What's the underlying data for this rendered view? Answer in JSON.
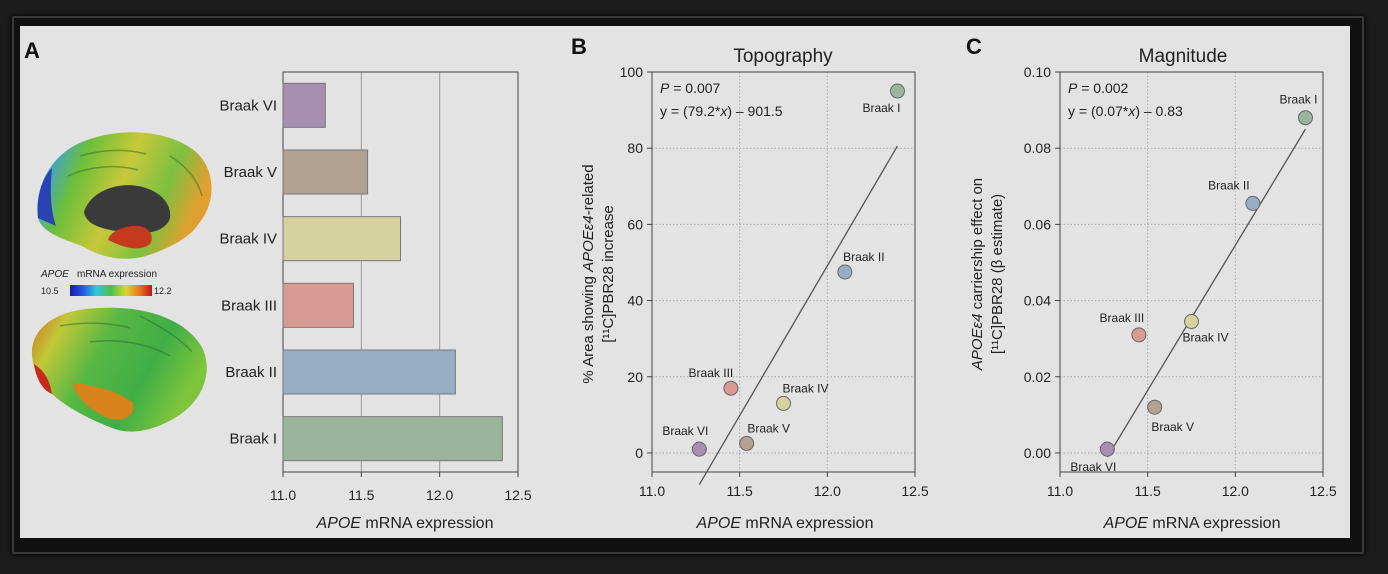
{
  "panels": {
    "a": {
      "label": "A",
      "colorbar": {
        "title_gene": "APOE",
        "title_rest": "mRNA expression",
        "min_label": "10.5",
        "max_label": "12.2"
      }
    },
    "b": {
      "label": "B"
    },
    "c": {
      "label": "C"
    }
  },
  "chart_data": [
    {
      "type": "bar",
      "orientation": "horizontal",
      "categories": [
        "Braak VI",
        "Braak V",
        "Braak IV",
        "Braak III",
        "Braak II",
        "Braak I"
      ],
      "values": [
        11.27,
        11.54,
        11.75,
        11.45,
        12.1,
        12.4
      ],
      "colors": [
        "#a68fb0",
        "#b3a292",
        "#d6d2a0",
        "#d99a93",
        "#97aec4",
        "#9bb59d"
      ],
      "xlim": [
        11.0,
        12.5
      ],
      "xticks": [
        "11.0",
        "11.5",
        "12.0",
        "12.5"
      ],
      "xlabel_gene": "APOE",
      "xlabel_rest": " mRNA expression",
      "grid": "vertical"
    },
    {
      "type": "scatter",
      "title": "Topography",
      "points": [
        {
          "label": "Braak I",
          "x": 12.4,
          "y": 95,
          "color": "#9bb59d"
        },
        {
          "label": "Braak II",
          "x": 12.1,
          "y": 47.5,
          "color": "#97aec4"
        },
        {
          "label": "Braak III",
          "x": 11.45,
          "y": 17,
          "color": "#d99a93"
        },
        {
          "label": "Braak IV",
          "x": 11.75,
          "y": 13,
          "color": "#d6d2a0"
        },
        {
          "label": "Braak V",
          "x": 11.54,
          "y": 2.5,
          "color": "#b3a292"
        },
        {
          "label": "Braak VI",
          "x": 11.27,
          "y": 1,
          "color": "#a68fb0"
        }
      ],
      "fit_line": {
        "x": [
          11.27,
          12.4
        ],
        "y": [
          -8.3,
          80.6
        ]
      },
      "xlim": [
        11.0,
        12.5
      ],
      "ylim": [
        -5,
        100
      ],
      "xticks": [
        "11.0",
        "11.5",
        "12.0",
        "12.5"
      ],
      "yticks": [
        "0",
        "20",
        "40",
        "60",
        "80",
        "100"
      ],
      "xlabel_gene": "APOE",
      "xlabel_rest": " mRNA expression",
      "ylabel_line1_pre": "% Area showing ",
      "ylabel_line1_gene": "APOEε4",
      "ylabel_line1_post": "-related",
      "ylabel_line2": "[¹¹C]PBR28 increase",
      "annotation_p_symbol": "P",
      "annotation_p_value": " = 0.007",
      "annotation_eq_pre": "y = (79.2*",
      "annotation_eq_var": "x",
      "annotation_eq_post": ") – 901.5",
      "grid": true
    },
    {
      "type": "scatter",
      "title": "Magnitude",
      "points": [
        {
          "label": "Braak I",
          "x": 12.4,
          "y": 0.088,
          "color": "#9bb59d"
        },
        {
          "label": "Braak II",
          "x": 12.1,
          "y": 0.0655,
          "color": "#97aec4"
        },
        {
          "label": "Braak III",
          "x": 11.45,
          "y": 0.031,
          "color": "#d99a93"
        },
        {
          "label": "Braak IV",
          "x": 11.75,
          "y": 0.0345,
          "color": "#d6d2a0"
        },
        {
          "label": "Braak V",
          "x": 11.54,
          "y": 0.012,
          "color": "#b3a292"
        },
        {
          "label": "Braak VI",
          "x": 11.27,
          "y": 0.001,
          "color": "#a68fb0"
        }
      ],
      "fit_line": {
        "x": [
          11.27,
          12.4
        ],
        "y": [
          -0.0011,
          0.085
        ]
      },
      "xlim": [
        11.0,
        12.5
      ],
      "ylim": [
        -0.005,
        0.1
      ],
      "xticks": [
        "11.0",
        "11.5",
        "12.0",
        "12.5"
      ],
      "yticks": [
        "0.00",
        "0.02",
        "0.04",
        "0.06",
        "0.08",
        "0.10"
      ],
      "xlabel_gene": "APOE",
      "xlabel_rest": " mRNA expression",
      "ylabel_line1_gene": "APOEε4",
      "ylabel_line1_post": " carriership effect on",
      "ylabel_line2": "[¹¹C]PBR28 (β estimate)",
      "annotation_p_symbol": "P",
      "annotation_p_value": " = 0.002",
      "annotation_eq_pre": "y = (0.07*",
      "annotation_eq_var": "x",
      "annotation_eq_post": ") – 0.83",
      "grid": true
    }
  ]
}
